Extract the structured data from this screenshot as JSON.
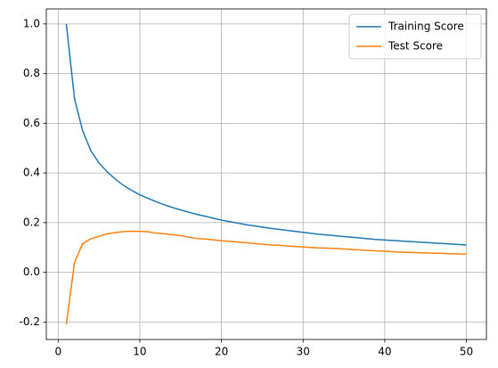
{
  "chart_data": {
    "type": "line",
    "x": [
      1,
      2,
      3,
      4,
      5,
      6,
      7,
      8,
      9,
      10,
      11,
      12,
      13,
      14,
      15,
      16,
      17,
      18,
      19,
      20,
      21,
      22,
      23,
      24,
      25,
      26,
      27,
      28,
      29,
      30,
      31,
      32,
      33,
      34,
      35,
      36,
      37,
      38,
      39,
      40,
      41,
      42,
      43,
      44,
      45,
      46,
      47,
      48,
      49,
      50
    ],
    "series": [
      {
        "name": "Training Score",
        "color": "#1f77b4",
        "values": [
          1.0,
          0.7,
          0.57,
          0.49,
          0.44,
          0.405,
          0.375,
          0.35,
          0.33,
          0.312,
          0.298,
          0.284,
          0.272,
          0.261,
          0.251,
          0.242,
          0.233,
          0.226,
          0.218,
          0.21,
          0.204,
          0.198,
          0.192,
          0.187,
          0.182,
          0.177,
          0.173,
          0.169,
          0.165,
          0.161,
          0.157,
          0.153,
          0.15,
          0.147,
          0.144,
          0.141,
          0.138,
          0.135,
          0.132,
          0.13,
          0.128,
          0.126,
          0.124,
          0.122,
          0.12,
          0.118,
          0.116,
          0.114,
          0.112,
          0.11
        ]
      },
      {
        "name": "Test Score",
        "color": "#ff7f0e",
        "values": [
          -0.21,
          0.04,
          0.115,
          0.135,
          0.145,
          0.155,
          0.16,
          0.164,
          0.165,
          0.165,
          0.163,
          0.158,
          0.155,
          0.151,
          0.148,
          0.141,
          0.136,
          0.134,
          0.131,
          0.127,
          0.125,
          0.122,
          0.119,
          0.116,
          0.113,
          0.11,
          0.109,
          0.106,
          0.104,
          0.102,
          0.1,
          0.098,
          0.097,
          0.096,
          0.094,
          0.092,
          0.09,
          0.088,
          0.086,
          0.085,
          0.083,
          0.081,
          0.08,
          0.079,
          0.078,
          0.077,
          0.076,
          0.075,
          0.074,
          0.073
        ]
      }
    ],
    "xlim": [
      -1.45,
      52.45
    ],
    "xticks": [
      0,
      10,
      20,
      30,
      40,
      50
    ],
    "ylim": [
      -0.2705,
      1.0605
    ],
    "yticks": [
      -0.2,
      {
        "value": 0,
        "label": "0.0"
      },
      0.2,
      0.4,
      0.6,
      0.8,
      {
        "value": 1,
        "label": "1.0"
      }
    ],
    "grid": true,
    "legend": "upper right"
  }
}
